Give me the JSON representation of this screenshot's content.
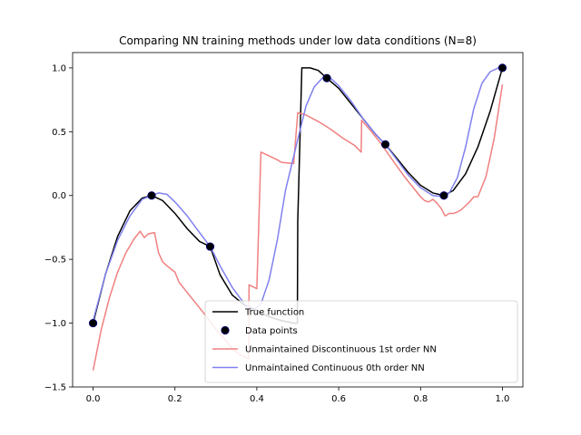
{
  "chart_data": {
    "type": "line",
    "title": "Comparing NN training methods under low data conditions (N=8)",
    "xlabel": "",
    "ylabel": "",
    "xlim": [
      -0.05,
      1.05
    ],
    "ylim": [
      -1.5,
      1.12
    ],
    "xticks": [
      0.0,
      0.2,
      0.4,
      0.6,
      0.8,
      1.0
    ],
    "xtick_labels": [
      "0.0",
      "0.2",
      "0.4",
      "0.6",
      "0.8",
      "1.0"
    ],
    "yticks": [
      -1.5,
      -1.0,
      -0.5,
      0.0,
      0.5,
      1.0
    ],
    "ytick_labels": [
      "−1.5",
      "−1.0",
      "−0.5",
      "0.0",
      "0.5",
      "1.0"
    ],
    "grid": false,
    "legend_position": "lower-right",
    "series": [
      {
        "name": "True function",
        "kind": "line",
        "color": "#000000",
        "x": [
          0.0,
          0.03,
          0.06,
          0.09,
          0.12,
          0.143,
          0.17,
          0.2,
          0.23,
          0.26,
          0.286,
          0.31,
          0.34,
          0.37,
          0.4,
          0.43,
          0.46,
          0.49,
          0.499,
          0.5,
          0.51,
          0.53,
          0.55,
          0.571,
          0.6,
          0.63,
          0.66,
          0.69,
          0.714,
          0.74,
          0.77,
          0.8,
          0.83,
          0.857,
          0.88,
          0.91,
          0.94,
          0.97,
          1.0
        ],
        "y": [
          -1.0,
          -0.62,
          -0.32,
          -0.12,
          -0.02,
          0.0,
          -0.04,
          -0.14,
          -0.26,
          -0.36,
          -0.4,
          -0.62,
          -0.78,
          -0.86,
          -0.9,
          -0.95,
          -0.98,
          -1.0,
          -1.0,
          -0.2,
          1.0,
          1.0,
          0.98,
          0.92,
          0.84,
          0.72,
          0.6,
          0.48,
          0.4,
          0.3,
          0.18,
          0.08,
          0.02,
          0.0,
          0.04,
          0.17,
          0.38,
          0.66,
          1.0
        ]
      },
      {
        "name": "Data points",
        "kind": "scatter",
        "color": "#000000",
        "edge_color": "#00007a",
        "x": [
          0.0,
          0.143,
          0.286,
          0.571,
          0.714,
          0.857,
          1.0
        ],
        "y": [
          -1.0,
          0.0,
          -0.4,
          0.92,
          0.4,
          0.0,
          1.0
        ]
      },
      {
        "name": "Unmaintained Discontinuous 1st order NN",
        "kind": "line",
        "color": "#f08080",
        "x": [
          0.0,
          0.02,
          0.04,
          0.06,
          0.08,
          0.1,
          0.115,
          0.125,
          0.135,
          0.15,
          0.16,
          0.17,
          0.18,
          0.2,
          0.21,
          0.22,
          0.24,
          0.26,
          0.28,
          0.3,
          0.32,
          0.34,
          0.36,
          0.38,
          0.381,
          0.4,
          0.41,
          0.43,
          0.45,
          0.46,
          0.49,
          0.5,
          0.52,
          0.55,
          0.58,
          0.61,
          0.64,
          0.655,
          0.656,
          0.68,
          0.7,
          0.72,
          0.74,
          0.76,
          0.78,
          0.8,
          0.81,
          0.82,
          0.83,
          0.84,
          0.85,
          0.86,
          0.87,
          0.88,
          0.89,
          0.9,
          0.91,
          0.92,
          0.93,
          0.94,
          0.96,
          0.98,
          1.0
        ],
        "y": [
          -1.37,
          -1.05,
          -0.8,
          -0.6,
          -0.45,
          -0.34,
          -0.28,
          -0.33,
          -0.3,
          -0.29,
          -0.45,
          -0.52,
          -0.55,
          -0.6,
          -0.68,
          -0.72,
          -0.8,
          -0.88,
          -0.96,
          -1.05,
          -1.12,
          -1.2,
          -1.25,
          -1.28,
          -0.7,
          -0.73,
          0.34,
          0.31,
          0.28,
          0.26,
          0.25,
          0.65,
          0.63,
          0.58,
          0.52,
          0.45,
          0.39,
          0.34,
          0.59,
          0.5,
          0.42,
          0.33,
          0.24,
          0.15,
          0.07,
          -0.01,
          -0.04,
          -0.05,
          -0.03,
          -0.06,
          -0.1,
          -0.16,
          -0.14,
          -0.14,
          -0.13,
          -0.11,
          -0.08,
          -0.05,
          -0.01,
          -0.01,
          0.15,
          0.45,
          0.87
        ]
      },
      {
        "name": "Unmaintained Continuous 0th order NN",
        "kind": "line",
        "color": "#8080f0",
        "x": [
          0.0,
          0.03,
          0.06,
          0.09,
          0.12,
          0.143,
          0.16,
          0.18,
          0.2,
          0.23,
          0.26,
          0.286,
          0.31,
          0.34,
          0.37,
          0.39,
          0.41,
          0.43,
          0.45,
          0.47,
          0.5,
          0.52,
          0.54,
          0.56,
          0.571,
          0.58,
          0.6,
          0.63,
          0.66,
          0.69,
          0.714,
          0.74,
          0.77,
          0.8,
          0.83,
          0.857,
          0.87,
          0.89,
          0.91,
          0.93,
          0.95,
          0.97,
          0.99,
          1.0
        ],
        "y": [
          -0.98,
          -0.62,
          -0.35,
          -0.16,
          -0.03,
          0.0,
          0.02,
          0.01,
          -0.05,
          -0.16,
          -0.29,
          -0.4,
          -0.55,
          -0.72,
          -0.85,
          -0.9,
          -0.85,
          -0.66,
          -0.35,
          0.04,
          0.44,
          0.7,
          0.85,
          0.92,
          0.92,
          0.92,
          0.86,
          0.74,
          0.6,
          0.48,
          0.4,
          0.29,
          0.16,
          0.06,
          0.0,
          -0.01,
          0.02,
          0.14,
          0.38,
          0.68,
          0.88,
          0.97,
          1.0,
          1.0
        ]
      }
    ]
  }
}
